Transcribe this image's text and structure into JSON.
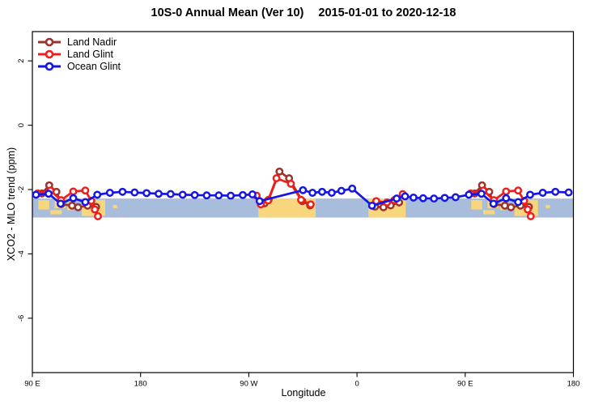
{
  "title_main": "10S-0 Annual Mean (Ver 10)",
  "title_dates": "2015-01-01 to 2020-12-18",
  "chart_data": {
    "type": "line",
    "title": "10S-0 Annual Mean (Ver 10)   2015-01-01 to 2020-12-18",
    "xlabel": "Longitude",
    "ylabel": "XCO2 - MLO trend (ppm)",
    "xlim": [
      90,
      540
    ],
    "ylim": [
      -7.69,
      2.91
    ],
    "grid": false,
    "legend_position": "top-left",
    "x_ticks": [
      {
        "pos": 90,
        "label": "90 E"
      },
      {
        "pos": 180,
        "label": "180"
      },
      {
        "pos": 270,
        "label": "90 W"
      },
      {
        "pos": 360,
        "label": "0"
      },
      {
        "pos": 450,
        "label": "90 E"
      },
      {
        "pos": 540,
        "label": "180"
      }
    ],
    "y_ticks": [
      {
        "pos": 2,
        "label": "2"
      },
      {
        "pos": 0,
        "label": "0"
      },
      {
        "pos": -2,
        "label": "-2"
      },
      {
        "pos": -4,
        "label": "-4"
      },
      {
        "pos": -6,
        "label": "-6"
      }
    ],
    "map_band": {
      "note": "background world-map strip of the 10S-0 latitude band",
      "ocean_color": "#A8BDDB",
      "land_color": "#F8D67E",
      "x_range": [
        90,
        540
      ],
      "y_range": [
        -2.28,
        -2.87
      ],
      "land_shapes": [
        {
          "x": [
            95,
            104
          ],
          "y": [
            -2.33,
            -2.62
          ]
        },
        {
          "x": [
            105,
            114.5
          ],
          "y": [
            -2.64,
            -2.77
          ]
        },
        {
          "x": [
            108.5,
            117.5
          ],
          "y": [
            -2.3,
            -2.58
          ]
        },
        {
          "x": [
            119,
            123.5
          ],
          "y": [
            -2.36,
            -2.64
          ]
        },
        {
          "x": [
            125,
            128
          ],
          "y": [
            -2.52,
            -2.6
          ]
        },
        {
          "x": [
            131,
            150.5
          ],
          "y": [
            -2.32,
            -2.82
          ]
        },
        {
          "x": [
            157,
            160.5
          ],
          "y": [
            -2.48,
            -2.58
          ]
        },
        {
          "x": [
            278,
            325.5
          ],
          "y": [
            -2.28,
            -2.87
          ]
        },
        {
          "x": [
            369.5,
            400.5
          ],
          "y": [
            -2.28,
            -2.87
          ]
        },
        {
          "x": [
            455,
            464
          ],
          "y": [
            -2.33,
            -2.62
          ]
        },
        {
          "x": [
            465,
            474.5
          ],
          "y": [
            -2.64,
            -2.77
          ]
        },
        {
          "x": [
            468.5,
            477.5
          ],
          "y": [
            -2.3,
            -2.58
          ]
        },
        {
          "x": [
            479,
            483.5
          ],
          "y": [
            -2.36,
            -2.64
          ]
        },
        {
          "x": [
            485,
            488
          ],
          "y": [
            -2.52,
            -2.6
          ]
        },
        {
          "x": [
            491,
            510.5
          ],
          "y": [
            -2.32,
            -2.82
          ]
        },
        {
          "x": [
            517,
            520.5
          ],
          "y": [
            -2.48,
            -2.58
          ]
        }
      ]
    },
    "series": [
      {
        "name": "Land Nadir",
        "color": "#9A332B",
        "segments": [
          [
            [
              98,
              -2.12
            ],
            [
              104,
              -1.87
            ],
            [
              110,
              -2.07
            ],
            [
              114,
              -2.45
            ],
            [
              123,
              -2.5
            ],
            [
              128,
              -2.55
            ],
            [
              136,
              -2.5
            ],
            [
              143,
              -2.54
            ]
          ],
          [
            [
              283,
              -2.43
            ],
            [
              286.5,
              -2.32
            ],
            [
              295.5,
              -1.44
            ],
            [
              303.5,
              -1.65
            ],
            [
              314.5,
              -2.36
            ],
            [
              321,
              -2.49
            ]
          ],
          [
            [
              375,
              -2.53
            ],
            [
              382,
              -2.55
            ],
            [
              388,
              -2.49
            ],
            [
              395,
              -2.4
            ]
          ],
          [
            [
              458,
              -2.12
            ],
            [
              464,
              -1.87
            ],
            [
              470,
              -2.07
            ],
            [
              474,
              -2.45
            ],
            [
              483,
              -2.5
            ],
            [
              488,
              -2.55
            ],
            [
              496,
              -2.5
            ],
            [
              503,
              -2.54
            ]
          ]
        ]
      },
      {
        "name": "Land Glint",
        "color": "#EE1F1C",
        "segments": [
          [
            [
              94.5,
              -2.12
            ],
            [
              105,
              -2.03
            ],
            [
              113.8,
              -2.33
            ],
            [
              124,
              -2.06
            ],
            [
              134,
              -2.03
            ],
            [
              139,
              -2.35
            ],
            [
              142,
              -2.62
            ],
            [
              144.5,
              -2.83
            ]
          ],
          [
            [
              276.5,
              -2.19
            ],
            [
              280,
              -2.46
            ],
            [
              286,
              -2.34
            ],
            [
              293,
              -1.65
            ],
            [
              305,
              -1.82
            ],
            [
              313.5,
              -2.32
            ],
            [
              321.5,
              -2.46
            ]
          ],
          [
            [
              376,
              -2.36
            ],
            [
              385,
              -2.4
            ],
            [
              391,
              -2.33
            ],
            [
              398,
              -2.14
            ]
          ],
          [
            [
              454.5,
              -2.12
            ],
            [
              465,
              -2.03
            ],
            [
              473.8,
              -2.33
            ],
            [
              484,
              -2.06
            ],
            [
              494,
              -2.03
            ],
            [
              499,
              -2.35
            ],
            [
              502,
              -2.62
            ],
            [
              504.5,
              -2.83
            ]
          ]
        ]
      },
      {
        "name": "Ocean Glint",
        "color": "#1616E4",
        "segments": [
          [
            [
              93,
              -2.16
            ],
            [
              103.5,
              -2.13
            ],
            [
              113.5,
              -2.44
            ],
            [
              124,
              -2.27
            ],
            [
              134,
              -2.39
            ],
            [
              144,
              -2.16
            ],
            [
              154.5,
              -2.1
            ],
            [
              165,
              -2.07
            ],
            [
              175,
              -2.09
            ],
            [
              185,
              -2.11
            ],
            [
              195,
              -2.13
            ],
            [
              205,
              -2.14
            ],
            [
              215,
              -2.16
            ],
            [
              225,
              -2.17
            ],
            [
              235,
              -2.18
            ],
            [
              245,
              -2.18
            ],
            [
              255,
              -2.19
            ],
            [
              265,
              -2.17
            ],
            [
              273,
              -2.15
            ],
            [
              279,
              -2.36
            ],
            [
              315,
              -2.02
            ],
            [
              323,
              -2.1
            ],
            [
              331,
              -2.07
            ],
            [
              339,
              -2.1
            ],
            [
              347,
              -2.04
            ],
            [
              356,
              -1.97
            ],
            [
              372.5,
              -2.5
            ],
            [
              393,
              -2.28
            ],
            [
              400,
              -2.21
            ],
            [
              407,
              -2.25
            ],
            [
              415,
              -2.27
            ],
            [
              424,
              -2.28
            ],
            [
              433,
              -2.26
            ],
            [
              442,
              -2.24
            ],
            [
              453,
              -2.16
            ],
            [
              463.5,
              -2.13
            ],
            [
              473.5,
              -2.44
            ],
            [
              484,
              -2.27
            ],
            [
              494,
              -2.39
            ],
            [
              504,
              -2.16
            ],
            [
              514.5,
              -2.1
            ],
            [
              525,
              -2.07
            ],
            [
              536,
              -2.09
            ]
          ]
        ]
      }
    ]
  }
}
